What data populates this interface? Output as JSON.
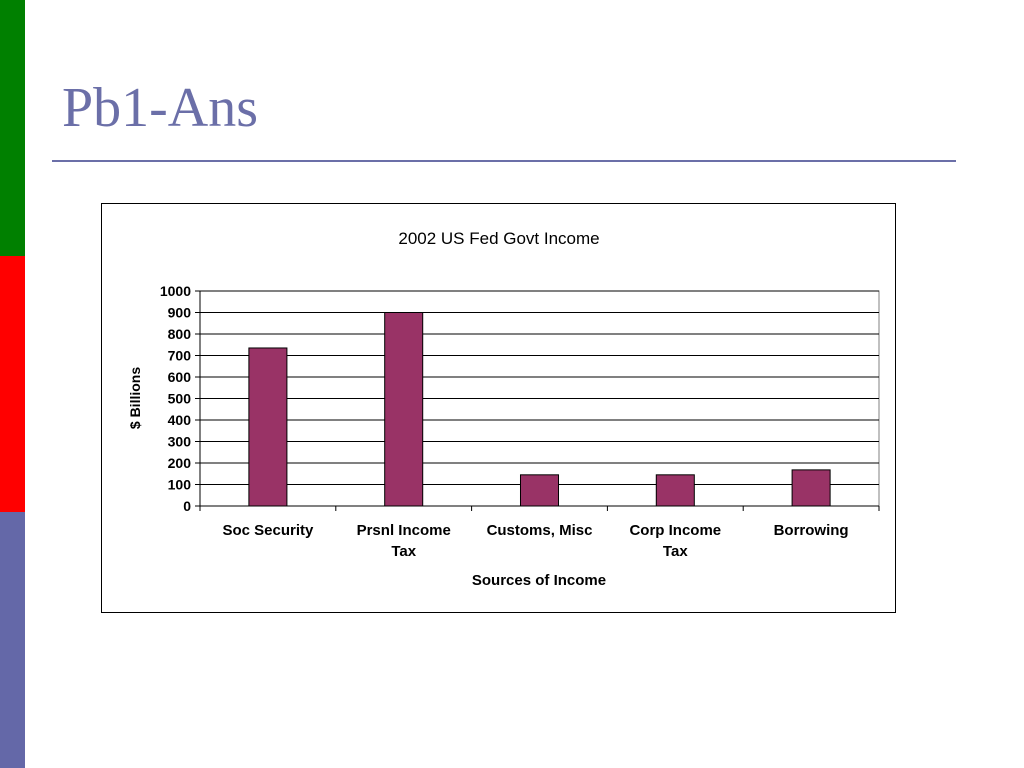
{
  "slide": {
    "title": "Pb1-Ans",
    "colors": {
      "title": "#6b6fa8",
      "rule": "#6b6fa8",
      "sidebar_top": "#008000",
      "sidebar_middle": "#ff0000",
      "sidebar_bottom": "#6468a8"
    }
  },
  "chart_data": {
    "type": "bar",
    "title": "2002 US Fed Govt Income",
    "xlabel": "Sources of Income",
    "ylabel": "$ Billions",
    "categories": [
      [
        "Soc Security"
      ],
      [
        "Prsnl Income",
        "Tax"
      ],
      [
        "Customs, Misc"
      ],
      [
        "Corp Income",
        "Tax"
      ],
      [
        "Borrowing"
      ]
    ],
    "values": [
      735,
      900,
      145,
      145,
      168
    ],
    "ylim": [
      0,
      1000
    ],
    "yticks": [
      0,
      100,
      200,
      300,
      400,
      500,
      600,
      700,
      800,
      900,
      1000
    ],
    "grid": true,
    "legend": "none",
    "bar_color": "#993366"
  }
}
